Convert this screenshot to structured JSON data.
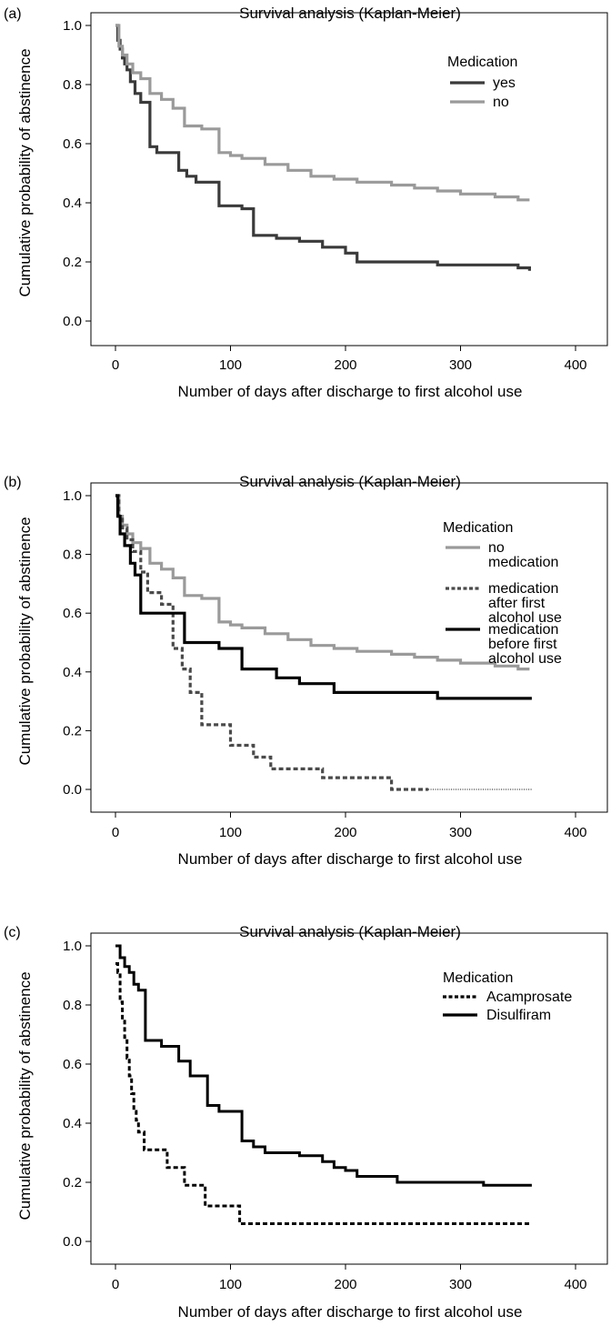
{
  "chart_data": [
    {
      "type": "line",
      "step": true,
      "panel_label": "(a)",
      "title": "Survival analysis (Kaplan-Meier)",
      "xlabel": "Number of days after discharge to first alcohol use",
      "ylabel": "Cumulative probability of abstinence",
      "xlim": [
        0,
        400
      ],
      "ylim": [
        0,
        1
      ],
      "xticks": [
        "0",
        "100",
        "200",
        "300",
        "400"
      ],
      "yticks": [
        "0.0",
        "0.2",
        "0.4",
        "0.6",
        "0.8",
        "1.0"
      ],
      "grid": false,
      "legend": {
        "title": "Medication",
        "position": "top-right"
      },
      "series": [
        {
          "name": "yes",
          "color": "#3a3a3a",
          "style": "solid",
          "x": [
            0,
            2,
            4,
            6,
            8,
            10,
            13,
            17,
            22,
            30,
            36,
            45,
            55,
            62,
            70,
            90,
            110,
            120,
            140,
            160,
            180,
            200,
            210,
            280,
            350,
            360
          ],
          "y": [
            1.0,
            0.95,
            0.92,
            0.89,
            0.87,
            0.85,
            0.81,
            0.77,
            0.74,
            0.59,
            0.57,
            0.57,
            0.51,
            0.49,
            0.47,
            0.39,
            0.38,
            0.29,
            0.28,
            0.27,
            0.25,
            0.23,
            0.2,
            0.19,
            0.18,
            0.17
          ]
        },
        {
          "name": "no",
          "color": "#9a9a9a",
          "style": "solid",
          "x": [
            0,
            3,
            6,
            10,
            15,
            22,
            30,
            40,
            50,
            60,
            75,
            90,
            100,
            110,
            130,
            150,
            170,
            190,
            210,
            240,
            260,
            280,
            300,
            330,
            350,
            360
          ],
          "y": [
            1.0,
            0.93,
            0.9,
            0.87,
            0.84,
            0.82,
            0.77,
            0.75,
            0.72,
            0.66,
            0.65,
            0.57,
            0.56,
            0.55,
            0.53,
            0.51,
            0.49,
            0.48,
            0.47,
            0.46,
            0.45,
            0.44,
            0.43,
            0.42,
            0.41,
            0.41
          ]
        }
      ]
    },
    {
      "type": "line",
      "step": true,
      "panel_label": "(b)",
      "title": "Survival analysis (Kaplan-Meier)",
      "xlabel": "Number of days after discharge to first alcohol use",
      "ylabel": "Cumulative probability of abstinence",
      "xlim": [
        0,
        400
      ],
      "ylim": [
        0,
        1
      ],
      "xticks": [
        "0",
        "100",
        "200",
        "300",
        "400"
      ],
      "yticks": [
        "0.0",
        "0.2",
        "0.4",
        "0.6",
        "0.8",
        "1.0"
      ],
      "grid": false,
      "legend": {
        "title": "Medication",
        "position": "top-right"
      },
      "series": [
        {
          "name": "no medication",
          "color": "#9a9a9a",
          "style": "solid",
          "x": [
            0,
            3,
            6,
            10,
            15,
            22,
            30,
            40,
            50,
            60,
            75,
            90,
            100,
            110,
            130,
            150,
            170,
            190,
            210,
            240,
            260,
            280,
            300,
            330,
            350,
            360
          ],
          "y": [
            1.0,
            0.93,
            0.9,
            0.87,
            0.84,
            0.82,
            0.77,
            0.75,
            0.72,
            0.66,
            0.65,
            0.57,
            0.56,
            0.55,
            0.53,
            0.51,
            0.49,
            0.48,
            0.47,
            0.46,
            0.45,
            0.44,
            0.43,
            0.42,
            0.41,
            0.41
          ]
        },
        {
          "name": "medication after first alcohol use",
          "color": "#4a4a4a",
          "style": "dashed",
          "x": [
            0,
            3,
            6,
            10,
            15,
            22,
            28,
            40,
            50,
            58,
            65,
            75,
            85,
            100,
            110,
            120,
            135,
            150,
            180,
            240,
            272
          ],
          "y": [
            1.0,
            0.93,
            0.89,
            0.85,
            0.81,
            0.74,
            0.67,
            0.63,
            0.48,
            0.41,
            0.33,
            0.22,
            0.22,
            0.15,
            0.15,
            0.11,
            0.07,
            0.07,
            0.04,
            0.0,
            0.0
          ]
        },
        {
          "name": "medication before first alcohol use",
          "color": "#000000",
          "style": "solid",
          "x": [
            0,
            2,
            4,
            8,
            13,
            17,
            22,
            30,
            60,
            70,
            90,
            110,
            140,
            160,
            190,
            240,
            280,
            320,
            362
          ],
          "y": [
            1.0,
            0.93,
            0.87,
            0.83,
            0.77,
            0.73,
            0.6,
            0.6,
            0.5,
            0.5,
            0.48,
            0.41,
            0.38,
            0.36,
            0.33,
            0.33,
            0.31,
            0.31,
            0.31
          ]
        }
      ],
      "annotations": [
        {
          "kind": "dotted-continuation",
          "series": "medication after first alcohol use",
          "x": [
            272,
            362
          ],
          "y": [
            0.0,
            0.0
          ]
        }
      ]
    },
    {
      "type": "line",
      "step": true,
      "panel_label": "(c)",
      "title": "Survival analysis (Kaplan-Meier)",
      "xlabel": "Number of days after discharge to first alcohol use",
      "ylabel": "Cumulative probability of abstinence",
      "xlim": [
        0,
        400
      ],
      "ylim": [
        0,
        1
      ],
      "xticks": [
        "0",
        "100",
        "200",
        "300",
        "400"
      ],
      "yticks": [
        "0.0",
        "0.2",
        "0.4",
        "0.6",
        "0.8",
        "1.0"
      ],
      "grid": false,
      "legend": {
        "title": "Medication",
        "position": "top-right"
      },
      "series": [
        {
          "name": "Acamprosate",
          "color": "#000000",
          "style": "dashed",
          "x": [
            0,
            2,
            4,
            6,
            8,
            10,
            12,
            14,
            16,
            18,
            20,
            25,
            33,
            45,
            60,
            70,
            78,
            100,
            108,
            362
          ],
          "y": [
            0.94,
            0.91,
            0.81,
            0.75,
            0.69,
            0.62,
            0.56,
            0.5,
            0.44,
            0.41,
            0.37,
            0.31,
            0.31,
            0.25,
            0.19,
            0.19,
            0.12,
            0.12,
            0.06,
            0.06
          ]
        },
        {
          "name": "Disulfiram",
          "color": "#000000",
          "style": "solid",
          "x": [
            0,
            4,
            8,
            12,
            16,
            20,
            26,
            40,
            55,
            65,
            80,
            90,
            110,
            120,
            130,
            160,
            180,
            190,
            200,
            210,
            230,
            245,
            280,
            320,
            362
          ],
          "y": [
            1.0,
            0.96,
            0.93,
            0.91,
            0.87,
            0.85,
            0.68,
            0.66,
            0.61,
            0.56,
            0.46,
            0.44,
            0.34,
            0.32,
            0.3,
            0.29,
            0.27,
            0.25,
            0.24,
            0.22,
            0.22,
            0.2,
            0.2,
            0.19,
            0.19
          ]
        }
      ]
    }
  ]
}
